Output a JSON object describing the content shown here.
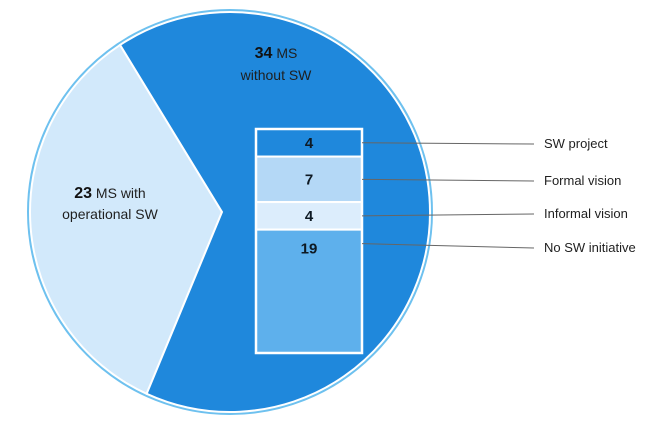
{
  "chart_data": {
    "type": "pie",
    "slices": [
      {
        "value": 23,
        "number_label": "23",
        "line1_suffix": " MS with",
        "line2": "operational SW",
        "color": "#d2e9fb"
      },
      {
        "value": 34,
        "number_label": "34",
        "line1_suffix": " MS",
        "line2": "without SW",
        "color": "#1f88dc"
      }
    ],
    "breakdown": {
      "of_slice": "34 MS without SW",
      "segments": [
        {
          "label": "SW project",
          "value": 4,
          "number_label": "4",
          "color": "#1f88dc"
        },
        {
          "label": "Formal vision",
          "value": 7,
          "number_label": "7",
          "color": "#b4d8f6"
        },
        {
          "label": "Informal vision",
          "value": 4,
          "number_label": "4",
          "color": "#dcedfc"
        },
        {
          "label": "No SW initiative",
          "value": 19,
          "number_label": "19",
          "color": "#5eb0ec"
        }
      ]
    },
    "outline_color": "#ffffff",
    "ring_color": "#6ec1ef",
    "leader_color": "#666666"
  }
}
